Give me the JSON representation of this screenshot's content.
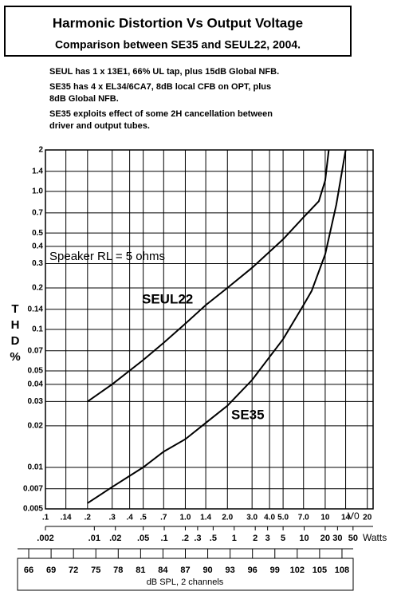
{
  "chart_data": {
    "type": "line",
    "title": "Harmonic Distortion Vs Output Voltage",
    "subtitle": "Comparison between SE35 and SEUL22, 2004.",
    "notes": [
      [
        "SEUL has 1 x 13E1, 66% UL tap, plus 15dB Global NFB."
      ],
      [
        "SE35 has 4 x EL34/6CA7, 8dB local CFB on OPT, plus",
        "8dB Global NFB."
      ],
      [
        "SE35 exploits effect of some 2H cancellation between",
        "driver and output tubes."
      ]
    ],
    "annotations": [
      "Speaker RL = 5 ohms"
    ],
    "ylabel": [
      "T",
      "H",
      "D",
      "%"
    ],
    "xlabel": "V0",
    "x2label": "Watts",
    "x3label": "dB SPL, 2 channels",
    "log_x": true,
    "log_y": true,
    "grid": true,
    "color": "#000000",
    "xlim": [
      0.1,
      22
    ],
    "xticks": [
      {
        "value": 0.1,
        "label": ".1"
      },
      {
        "value": 0.14,
        "label": ".14"
      },
      {
        "value": 0.2,
        "label": ".2"
      },
      {
        "value": 0.3,
        "label": ".3"
      },
      {
        "value": 0.4,
        "label": ".4"
      },
      {
        "value": 0.5,
        "label": ".5"
      },
      {
        "value": 0.7,
        "label": ".7"
      },
      {
        "value": 1,
        "label": "1.0"
      },
      {
        "value": 1.4,
        "label": "1.4"
      },
      {
        "value": 2,
        "label": "2.0"
      },
      {
        "value": 3,
        "label": "3.0"
      },
      {
        "value": 4,
        "label": "4.0"
      },
      {
        "value": 5,
        "label": "5.0"
      },
      {
        "value": 7,
        "label": "7.0"
      },
      10,
      14,
      20
    ],
    "x2lim": [
      0.002,
      96.8
    ],
    "x2ticks": [
      {
        "value": 0.002,
        "label": ".002"
      },
      {
        "value": 0.01,
        "label": ".01"
      },
      {
        "value": 0.02,
        "label": ".02"
      },
      {
        "value": 0.05,
        "label": ".05"
      },
      {
        "value": 0.1,
        "label": ".1"
      },
      {
        "value": 0.2,
        "label": ".2"
      },
      {
        "value": 0.3,
        "label": ".3"
      },
      {
        "value": 0.5,
        "label": ".5"
      },
      1,
      2,
      3,
      5,
      10,
      20,
      30,
      50
    ],
    "x3lim": [
      64.5,
      109.5
    ],
    "x3ticks": [
      66,
      69,
      72,
      75,
      78,
      81,
      84,
      87,
      90,
      93,
      96,
      99,
      102,
      105,
      108
    ],
    "ylim": [
      0.005,
      2
    ],
    "yticks": [
      2,
      1.4,
      {
        "value": 1,
        "label": "1.0"
      },
      0.7,
      0.5,
      0.4,
      0.3,
      0.2,
      0.14,
      0.1,
      0.07,
      0.05,
      0.04,
      0.03,
      0.02,
      0.01,
      0.007,
      0.005
    ],
    "series": [
      {
        "name": "SEUL22",
        "color": "#000000",
        "x": [
          0.2,
          0.3,
          0.5,
          0.7,
          1,
          1.4,
          2,
          3,
          5,
          7,
          9,
          10,
          10.6
        ],
        "values": [
          0.03,
          0.04,
          0.06,
          0.08,
          0.11,
          0.15,
          0.2,
          0.28,
          0.45,
          0.65,
          0.85,
          1.2,
          2
        ]
      },
      {
        "name": "SE35",
        "color": "#000000",
        "x": [
          0.2,
          0.3,
          0.5,
          0.7,
          1,
          1.4,
          2,
          3,
          5,
          7,
          8,
          10,
          12,
          14
        ],
        "values": [
          0.0055,
          0.0072,
          0.01,
          0.013,
          0.016,
          0.021,
          0.028,
          0.043,
          0.085,
          0.15,
          0.19,
          0.35,
          0.8,
          2
        ]
      }
    ]
  }
}
